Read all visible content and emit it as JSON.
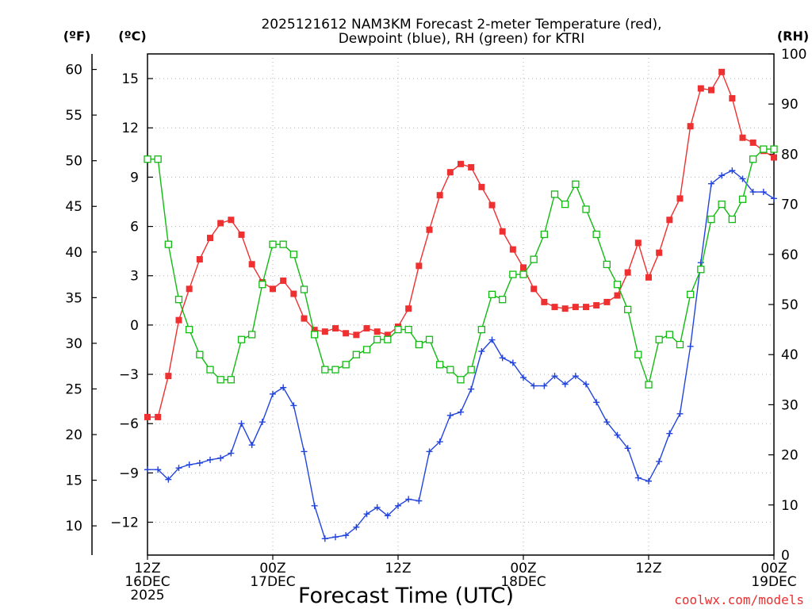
{
  "chart_data": {
    "type": "line",
    "title_line1": "2025121612 NAM3KM Forecast 2-meter Temperature (red),",
    "title_line2": "Dewpoint (blue), RH (green) for KTRI",
    "xlabel": "Forecast Time (UTC)",
    "credit": "coolwx.com/models",
    "units": {
      "fahrenheit": "(ºF)",
      "celsius": "(ºC)",
      "rh": "(RH)"
    },
    "x_range_hours": [
      0,
      60
    ],
    "y_celsius_range": [
      -14,
      16.5
    ],
    "y_rh_range": [
      0,
      100
    ],
    "x_ticks": [
      {
        "hour": 0,
        "lines": [
          "12Z",
          "16DEC",
          "2025"
        ]
      },
      {
        "hour": 12,
        "lines": [
          "00Z",
          "17DEC"
        ]
      },
      {
        "hour": 24,
        "lines": [
          "12Z"
        ]
      },
      {
        "hour": 36,
        "lines": [
          "00Z",
          "18DEC"
        ]
      },
      {
        "hour": 48,
        "lines": [
          "12Z"
        ]
      },
      {
        "hour": 60,
        "lines": [
          "00Z",
          "19DEC"
        ]
      }
    ],
    "celsius_ticks": [
      "15",
      "12",
      "9",
      "6",
      "3",
      "0",
      "−3",
      "−6",
      "−9",
      "−12"
    ],
    "fahrenheit_ticks": [
      "60",
      "55",
      "50",
      "45",
      "40",
      "35",
      "30",
      "25",
      "20",
      "15",
      "10"
    ],
    "rh_ticks": [
      "100",
      "90",
      "80",
      "70",
      "60",
      "50",
      "40",
      "30",
      "20",
      "10",
      "0"
    ],
    "colors": {
      "temperature": "#ee3030",
      "dewpoint": "#2244dd",
      "rh": "#11bb11"
    },
    "series": [
      {
        "name": "2-meter Temperature (°C)",
        "axis": "celsius",
        "marker": "filled-square",
        "color": "#ee3030",
        "values": [
          -5.6,
          -5.6,
          -3.1,
          0.3,
          2.2,
          4.0,
          5.3,
          6.2,
          6.4,
          5.5,
          3.7,
          2.6,
          2.2,
          2.7,
          1.9,
          0.4,
          -0.3,
          -0.4,
          -0.2,
          -0.5,
          -0.6,
          -0.2,
          -0.4,
          -0.6,
          -0.1,
          1.0,
          3.6,
          5.8,
          7.9,
          9.3,
          9.8,
          9.6,
          8.4,
          7.3,
          5.7,
          4.6,
          3.5,
          2.2,
          1.4,
          1.1,
          1.0,
          1.1,
          1.1,
          1.2,
          1.4,
          1.8,
          3.2,
          5.0,
          2.9,
          4.4,
          6.4,
          7.7,
          12.1,
          14.4,
          14.3,
          15.4,
          13.8,
          11.4,
          11.1,
          10.6,
          10.2
        ]
      },
      {
        "name": "Dewpoint (°C)",
        "axis": "celsius",
        "marker": "plus",
        "color": "#2244dd",
        "values": [
          -8.8,
          -8.8,
          -9.4,
          -8.7,
          -8.5,
          -8.4,
          -8.2,
          -8.1,
          -7.8,
          -6.0,
          -7.3,
          -5.9,
          -4.2,
          -3.8,
          -4.9,
          -7.7,
          -11.0,
          -13.0,
          -12.9,
          -12.8,
          -12.3,
          -11.5,
          -11.1,
          -11.6,
          -11.0,
          -10.6,
          -10.7,
          -7.7,
          -7.1,
          -5.5,
          -5.3,
          -3.9,
          -1.6,
          -0.9,
          -2.0,
          -2.3,
          -3.2,
          -3.7,
          -3.7,
          -3.1,
          -3.6,
          -3.1,
          -3.6,
          -4.7,
          -5.9,
          -6.7,
          -7.5,
          -9.3,
          -9.5,
          -8.3,
          -6.6,
          -5.4,
          -1.3,
          3.8,
          8.6,
          9.1,
          9.4,
          8.9,
          8.1,
          8.1,
          7.7
        ]
      },
      {
        "name": "RH (%)",
        "axis": "rh",
        "marker": "open-square",
        "color": "#11bb11",
        "values": [
          79,
          79,
          62,
          51,
          45,
          40,
          37,
          35,
          35,
          43,
          44,
          54,
          62,
          62,
          60,
          53,
          44,
          37,
          37,
          38,
          40,
          41,
          43,
          43,
          45,
          45,
          42,
          43,
          38,
          37,
          35,
          37,
          45,
          52,
          51,
          56,
          56,
          59,
          64,
          72,
          70,
          74,
          69,
          64,
          58,
          54,
          49,
          40,
          34,
          43,
          44,
          42,
          52,
          57,
          67,
          70,
          67,
          71,
          79,
          81,
          81
        ]
      }
    ]
  }
}
